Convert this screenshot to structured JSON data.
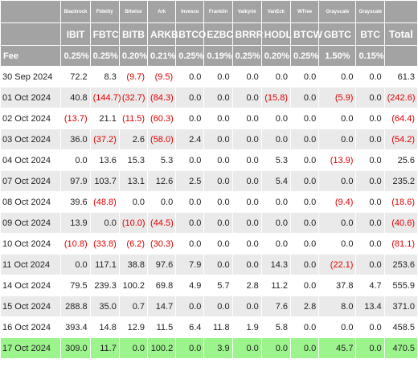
{
  "issuers": [
    "Blackrock",
    "Fidelity",
    "Bitwise",
    "Ark",
    "Invesco",
    "Franklin",
    "Valkyrie",
    "VanEck",
    "WTree",
    "Grayscale",
    "Grayscale"
  ],
  "tickers": [
    "IBIT",
    "FBTC",
    "BITB",
    "ARKB",
    "BTCO",
    "EZBC",
    "BRRR",
    "HODL",
    "BTCW",
    "GBTC",
    "BTC"
  ],
  "total_label": "Total",
  "fee_label": "Fee",
  "fees": [
    "0.25%",
    "0.25%",
    "0.20%",
    "0.21%",
    "0.25%",
    "0.19%",
    "0.25%",
    "0.20%",
    "0.25%",
    "1.50%",
    "0.15%"
  ],
  "rows": [
    {
      "date": "30 Sep 2024",
      "values": [
        "72.2",
        "8.3",
        "(9.7)",
        "(9.5)",
        "0.0",
        "0.0",
        "0.0",
        "0.0",
        "0.0",
        "0.0",
        "0.0"
      ],
      "total": "61.3"
    },
    {
      "date": "01 Oct 2024",
      "values": [
        "40.8",
        "(144.7)",
        "(32.7)",
        "(84.3)",
        "0.0",
        "0.0",
        "0.0",
        "(15.8)",
        "0.0",
        "(5.9)",
        "0.0"
      ],
      "total": "(242.6)"
    },
    {
      "date": "02 Oct 2024",
      "values": [
        "(13.7)",
        "21.1",
        "(11.5)",
        "(60.3)",
        "0.0",
        "0.0",
        "0.0",
        "0.0",
        "0.0",
        "0.0",
        "0.0"
      ],
      "total": "(64.4)"
    },
    {
      "date": "03 Oct 2024",
      "values": [
        "36.0",
        "(37.2)",
        "2.6",
        "(58.0)",
        "2.4",
        "0.0",
        "0.0",
        "0.0",
        "0.0",
        "0.0",
        "0.0"
      ],
      "total": "(54.2)"
    },
    {
      "date": "04 Oct 2024",
      "values": [
        "0.0",
        "13.6",
        "15.3",
        "5.3",
        "0.0",
        "0.0",
        "0.0",
        "5.3",
        "0.0",
        "(13.9)",
        "0.0"
      ],
      "total": "25.6"
    },
    {
      "date": "07 Oct 2024",
      "values": [
        "97.9",
        "103.7",
        "13.1",
        "12.6",
        "2.5",
        "0.0",
        "0.0",
        "5.4",
        "0.0",
        "0.0",
        "0.0"
      ],
      "total": "235.2"
    },
    {
      "date": "08 Oct 2024",
      "values": [
        "39.6",
        "(48.8)",
        "0.0",
        "0.0",
        "0.0",
        "0.0",
        "0.0",
        "0.0",
        "0.0",
        "(9.4)",
        "0.0"
      ],
      "total": "(18.6)"
    },
    {
      "date": "09 Oct 2024",
      "values": [
        "13.9",
        "0.0",
        "(10.0)",
        "(44.5)",
        "0.0",
        "0.0",
        "0.0",
        "0.0",
        "0.0",
        "0.0",
        "0.0"
      ],
      "total": "(40.6)"
    },
    {
      "date": "10 Oct 2024",
      "values": [
        "(10.8)",
        "(33.8)",
        "(6.2)",
        "(30.3)",
        "0.0",
        "0.0",
        "0.0",
        "0.0",
        "0.0",
        "0.0",
        "0.0"
      ],
      "total": "(81.1)"
    },
    {
      "date": "11 Oct 2024",
      "values": [
        "0.0",
        "117.1",
        "38.8",
        "97.6",
        "7.9",
        "0.0",
        "0.0",
        "14.3",
        "0.0",
        "(22.1)",
        "0.0"
      ],
      "total": "253.6"
    },
    {
      "date": "14 Oct 2024",
      "values": [
        "79.5",
        "239.3",
        "100.2",
        "69.8",
        "4.9",
        "5.7",
        "2.8",
        "11.2",
        "0.0",
        "37.8",
        "4.7"
      ],
      "total": "555.9"
    },
    {
      "date": "15 Oct 2024",
      "values": [
        "288.8",
        "35.0",
        "0.7",
        "14.7",
        "0.0",
        "0.0",
        "0.0",
        "7.6",
        "2.8",
        "8.0",
        "13.4"
      ],
      "total": "371.0"
    },
    {
      "date": "16 Oct 2024",
      "values": [
        "393.4",
        "14.8",
        "12.9",
        "11.5",
        "6.4",
        "11.8",
        "1.9",
        "5.8",
        "0.0",
        "0.0",
        "0.0"
      ],
      "total": "458.5"
    },
    {
      "date": "17 Oct 2024",
      "values": [
        "309.0",
        "11.7",
        "0.0",
        "100.2",
        "0.0",
        "3.9",
        "0.0",
        "0.0",
        "0.0",
        "45.7",
        "0.0"
      ],
      "total": "470.5",
      "highlight": true
    }
  ],
  "colors": {
    "header_bg": "#a3a3a3",
    "row_alt_bg": "#eaeaea",
    "highlight_bg": "#9cf58c",
    "negative": "#e00000"
  }
}
